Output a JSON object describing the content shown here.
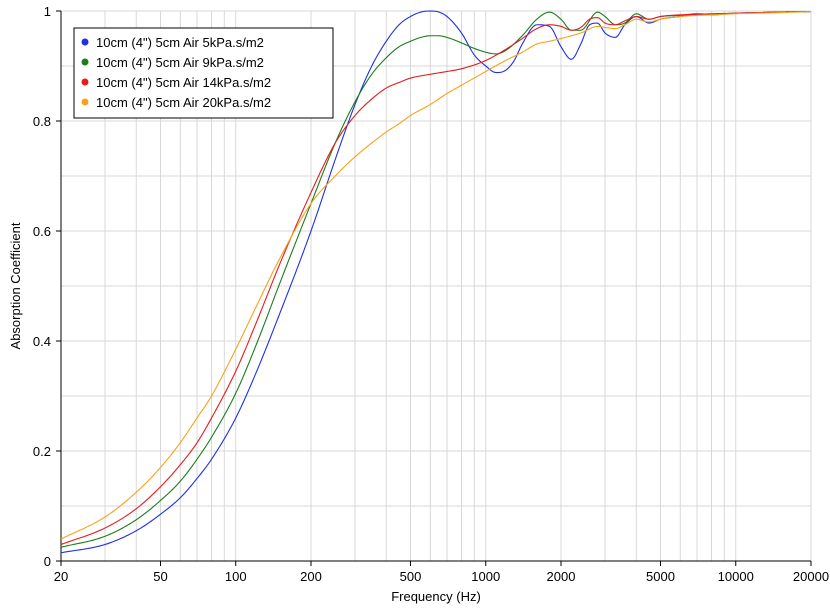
{
  "chart_data": {
    "type": "line",
    "title": "",
    "xlabel": "Frequency (Hz)",
    "ylabel": "Absorption Coefficient",
    "xscale": "log",
    "xlim": [
      20,
      20000
    ],
    "ylim": [
      0,
      1
    ],
    "grid": true,
    "legend_position": "top-left",
    "x_ticks": [
      20,
      50,
      100,
      200,
      500,
      1000,
      2000,
      5000,
      10000,
      20000
    ],
    "x_tick_labels": [
      "20",
      "50",
      "100",
      "200",
      "500",
      "1000",
      "2000",
      "5000",
      "10000",
      "20000"
    ],
    "y_ticks": [
      0,
      0.2,
      0.4,
      0.6,
      0.8,
      1
    ],
    "y_tick_labels": [
      "0",
      "0.2",
      "0.4",
      "0.6",
      "0.8",
      "1"
    ],
    "series": [
      {
        "name": "10cm (4\") 5cm Air 5kPa.s/m2",
        "color": "#1f2fe6",
        "x": [
          20,
          30,
          40,
          50,
          60,
          70,
          80,
          100,
          120,
          150,
          200,
          250,
          300,
          350,
          400,
          450,
          500,
          550,
          600,
          650,
          700,
          800,
          900,
          1000,
          1100,
          1200,
          1300,
          1400,
          1600,
          1800,
          2000,
          2200,
          2400,
          2600,
          2800,
          3000,
          3300,
          3600,
          4000,
          4500,
          5000,
          6000,
          7000,
          8000,
          10000,
          12000,
          15000,
          20000
        ],
        "y": [
          0.015,
          0.03,
          0.055,
          0.085,
          0.115,
          0.15,
          0.185,
          0.26,
          0.34,
          0.45,
          0.6,
          0.73,
          0.83,
          0.9,
          0.945,
          0.975,
          0.99,
          0.998,
          1.0,
          0.998,
          0.99,
          0.96,
          0.92,
          0.9,
          0.888,
          0.892,
          0.91,
          0.94,
          0.975,
          0.972,
          0.935,
          0.912,
          0.94,
          0.975,
          0.978,
          0.96,
          0.952,
          0.975,
          0.99,
          0.978,
          0.985,
          0.99,
          0.994,
          0.993,
          0.996,
          0.997,
          0.998,
          0.999
        ]
      },
      {
        "name": "10cm (4\") 5cm Air 9kPa.s/m2",
        "color": "#1b7d1b",
        "x": [
          20,
          30,
          40,
          50,
          60,
          70,
          80,
          100,
          120,
          150,
          200,
          250,
          300,
          350,
          400,
          450,
          500,
          550,
          600,
          650,
          700,
          800,
          900,
          1000,
          1100,
          1200,
          1400,
          1600,
          1800,
          2000,
          2200,
          2400,
          2800,
          3000,
          3300,
          3600,
          4000,
          4500,
          5000,
          6000,
          7000,
          8000,
          10000,
          12000,
          15000,
          20000
        ],
        "y": [
          0.025,
          0.045,
          0.075,
          0.11,
          0.145,
          0.185,
          0.225,
          0.305,
          0.39,
          0.505,
          0.65,
          0.76,
          0.835,
          0.885,
          0.915,
          0.935,
          0.945,
          0.952,
          0.955,
          0.955,
          0.952,
          0.942,
          0.932,
          0.925,
          0.922,
          0.928,
          0.955,
          0.985,
          0.998,
          0.985,
          0.965,
          0.965,
          0.998,
          0.99,
          0.975,
          0.978,
          0.995,
          0.985,
          0.99,
          0.992,
          0.995,
          0.994,
          0.996,
          0.997,
          0.998,
          0.999
        ]
      },
      {
        "name": "10cm (4\") 5cm Air 14kPa.s/m2",
        "color": "#e51c1c",
        "x": [
          20,
          30,
          40,
          50,
          60,
          70,
          80,
          100,
          120,
          150,
          200,
          250,
          300,
          350,
          400,
          450,
          500,
          600,
          700,
          800,
          1000,
          1200,
          1400,
          1600,
          1800,
          2000,
          2200,
          2400,
          2600,
          2800,
          3000,
          3300,
          3600,
          4000,
          4500,
          5000,
          6000,
          7000,
          8000,
          10000,
          12000,
          15000,
          20000
        ],
        "y": [
          0.03,
          0.06,
          0.095,
          0.135,
          0.175,
          0.215,
          0.26,
          0.345,
          0.43,
          0.54,
          0.67,
          0.76,
          0.81,
          0.84,
          0.86,
          0.87,
          0.878,
          0.885,
          0.89,
          0.895,
          0.91,
          0.93,
          0.95,
          0.968,
          0.975,
          0.972,
          0.965,
          0.97,
          0.985,
          0.988,
          0.978,
          0.975,
          0.982,
          0.99,
          0.985,
          0.99,
          0.993,
          0.994,
          0.995,
          0.996,
          0.997,
          0.998,
          0.999
        ]
      },
      {
        "name": "10cm (4\") 5cm Air 20kPa.s/m2",
        "color": "#f7a21b",
        "x": [
          20,
          30,
          40,
          50,
          60,
          70,
          80,
          100,
          120,
          150,
          200,
          250,
          300,
          350,
          400,
          450,
          500,
          600,
          700,
          800,
          1000,
          1200,
          1400,
          1600,
          1800,
          2000,
          2400,
          2800,
          3000,
          3300,
          3600,
          4000,
          4500,
          5000,
          6000,
          7000,
          8000,
          10000,
          12000,
          15000,
          20000
        ],
        "y": [
          0.04,
          0.08,
          0.125,
          0.17,
          0.215,
          0.26,
          0.3,
          0.385,
          0.46,
          0.55,
          0.65,
          0.7,
          0.735,
          0.76,
          0.78,
          0.795,
          0.81,
          0.83,
          0.85,
          0.865,
          0.89,
          0.91,
          0.925,
          0.94,
          0.945,
          0.95,
          0.96,
          0.972,
          0.97,
          0.968,
          0.975,
          0.985,
          0.98,
          0.985,
          0.99,
          0.992,
          0.993,
          0.995,
          0.996,
          0.997,
          0.999
        ]
      }
    ]
  }
}
